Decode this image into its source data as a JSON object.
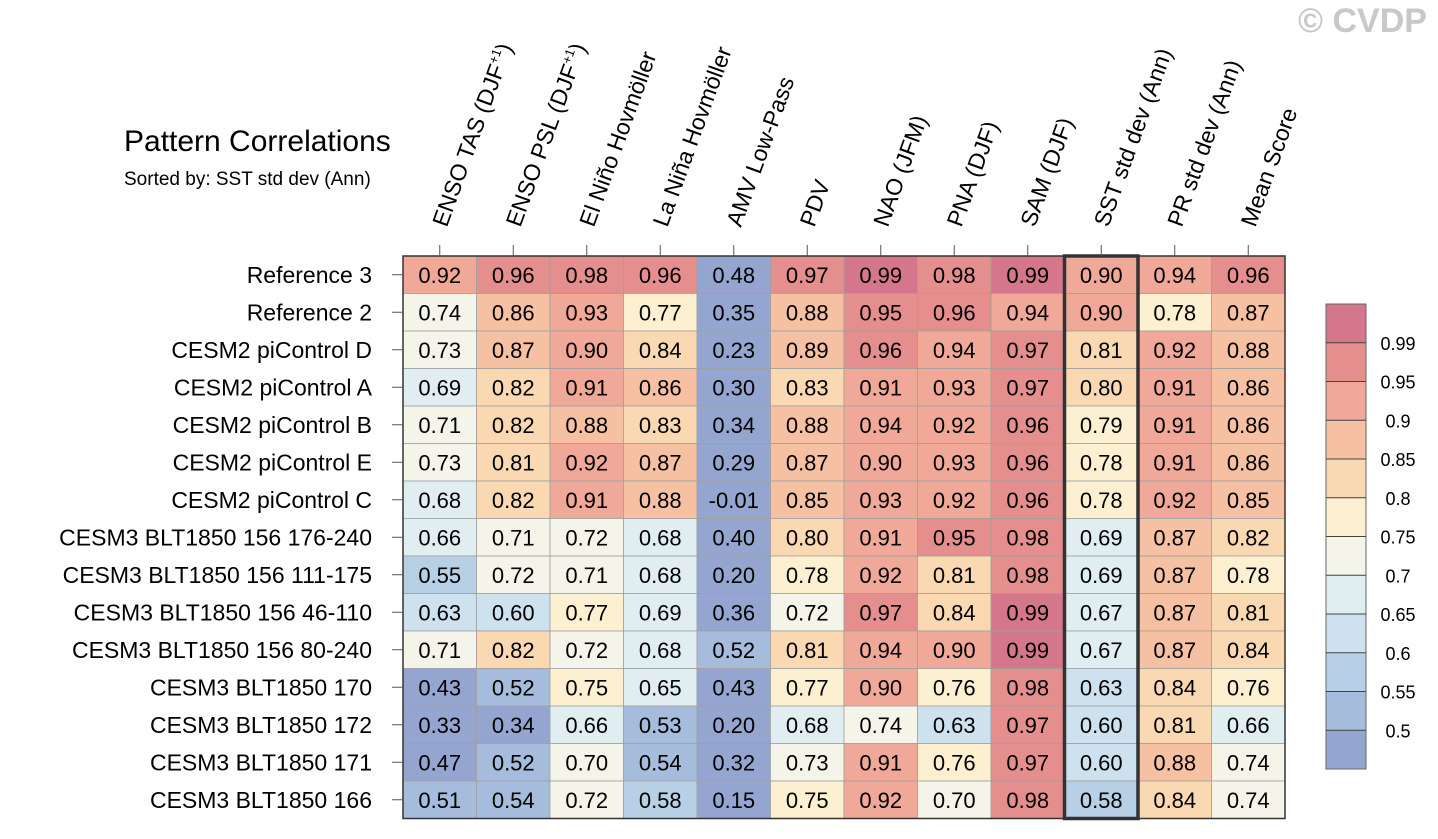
{
  "title": "Pattern Correlations",
  "subtitle": "Sorted by: SST std dev (Ann)",
  "watermark": "© CVDP",
  "chart_data": {
    "type": "heatmap",
    "columns": [
      {
        "text": "ENSO TAS (DJF",
        "sup": "+1",
        "close": ")"
      },
      {
        "text": "ENSO PSL (DJF",
        "sup": "+1",
        "close": ")"
      },
      {
        "text": "El Niño Hovmöller",
        "sup": "",
        "close": ""
      },
      {
        "text": "La Niña Hovmöller",
        "sup": "",
        "close": ""
      },
      {
        "text": "AMV Low-Pass",
        "sup": "",
        "close": ""
      },
      {
        "text": "PDV",
        "sup": "",
        "close": ""
      },
      {
        "text": "NAO (JFM)",
        "sup": "",
        "close": ""
      },
      {
        "text": "PNA (DJF)",
        "sup": "",
        "close": ""
      },
      {
        "text": "SAM (DJF)",
        "sup": "",
        "close": ""
      },
      {
        "text": "SST std dev (Ann)",
        "sup": "",
        "close": ""
      },
      {
        "text": "PR std dev (Ann)",
        "sup": "",
        "close": ""
      },
      {
        "text": "Mean Score",
        "sup": "",
        "close": ""
      }
    ],
    "rows": [
      "Reference 3",
      "Reference 2",
      "CESM2 piControl D",
      "CESM2 piControl A",
      "CESM2 piControl B",
      "CESM2 piControl E",
      "CESM2 piControl C",
      "CESM3 BLT1850 156 176-240",
      "CESM3 BLT1850 156 111-175",
      "CESM3 BLT1850 156 46-110",
      "CESM3 BLT1850 156 80-240",
      "CESM3 BLT1850 170",
      "CESM3 BLT1850 172",
      "CESM3 BLT1850 171",
      "CESM3 BLT1850 166"
    ],
    "values": [
      [
        "0.92",
        "0.96",
        "0.98",
        "0.96",
        "0.48",
        "0.97",
        "0.99",
        "0.98",
        "0.99",
        "0.90",
        "0.94",
        "0.96"
      ],
      [
        "0.74",
        "0.86",
        "0.93",
        "0.77",
        "0.35",
        "0.88",
        "0.95",
        "0.96",
        "0.94",
        "0.90",
        "0.78",
        "0.87"
      ],
      [
        "0.73",
        "0.87",
        "0.90",
        "0.84",
        "0.23",
        "0.89",
        "0.96",
        "0.94",
        "0.97",
        "0.81",
        "0.92",
        "0.88"
      ],
      [
        "0.69",
        "0.82",
        "0.91",
        "0.86",
        "0.30",
        "0.83",
        "0.91",
        "0.93",
        "0.97",
        "0.80",
        "0.91",
        "0.86"
      ],
      [
        "0.71",
        "0.82",
        "0.88",
        "0.83",
        "0.34",
        "0.88",
        "0.94",
        "0.92",
        "0.96",
        "0.79",
        "0.91",
        "0.86"
      ],
      [
        "0.73",
        "0.81",
        "0.92",
        "0.87",
        "0.29",
        "0.87",
        "0.90",
        "0.93",
        "0.96",
        "0.78",
        "0.91",
        "0.86"
      ],
      [
        "0.68",
        "0.82",
        "0.91",
        "0.88",
        "-0.01",
        "0.85",
        "0.93",
        "0.92",
        "0.96",
        "0.78",
        "0.92",
        "0.85"
      ],
      [
        "0.66",
        "0.71",
        "0.72",
        "0.68",
        "0.40",
        "0.80",
        "0.91",
        "0.95",
        "0.98",
        "0.69",
        "0.87",
        "0.82"
      ],
      [
        "0.55",
        "0.72",
        "0.71",
        "0.68",
        "0.20",
        "0.78",
        "0.92",
        "0.81",
        "0.98",
        "0.69",
        "0.87",
        "0.78"
      ],
      [
        "0.63",
        "0.60",
        "0.77",
        "0.69",
        "0.36",
        "0.72",
        "0.97",
        "0.84",
        "0.99",
        "0.67",
        "0.87",
        "0.81"
      ],
      [
        "0.71",
        "0.82",
        "0.72",
        "0.68",
        "0.52",
        "0.81",
        "0.94",
        "0.90",
        "0.99",
        "0.67",
        "0.87",
        "0.84"
      ],
      [
        "0.43",
        "0.52",
        "0.75",
        "0.65",
        "0.43",
        "0.77",
        "0.90",
        "0.76",
        "0.98",
        "0.63",
        "0.84",
        "0.76"
      ],
      [
        "0.33",
        "0.34",
        "0.66",
        "0.53",
        "0.20",
        "0.68",
        "0.74",
        "0.63",
        "0.97",
        "0.60",
        "0.81",
        "0.66"
      ],
      [
        "0.47",
        "0.52",
        "0.70",
        "0.54",
        "0.32",
        "0.73",
        "0.91",
        "0.76",
        "0.97",
        "0.60",
        "0.88",
        "0.74"
      ],
      [
        "0.51",
        "0.54",
        "0.72",
        "0.58",
        "0.15",
        "0.75",
        "0.92",
        "0.70",
        "0.98",
        "0.58",
        "0.84",
        "0.74"
      ]
    ],
    "highlight_column": 9,
    "colorbar": {
      "labels": [
        "0.99",
        "0.95",
        "0.9",
        "0.85",
        "0.8",
        "0.75",
        "0.7",
        "0.65",
        "0.6",
        "0.55",
        "0.5"
      ],
      "thresholds": [
        0.99,
        0.95,
        0.9,
        0.85,
        0.8,
        0.75,
        0.7,
        0.65,
        0.6,
        0.55,
        0.5
      ],
      "colors": [
        "#d4778a",
        "#e48e8e",
        "#f0a898",
        "#f6c0a2",
        "#fad8b2",
        "#fcf0d0",
        "#f4f4e8",
        "#e0eef2",
        "#cde2ee",
        "#b8d0e6",
        "#a6bcdc",
        "#94a6d0"
      ]
    }
  }
}
